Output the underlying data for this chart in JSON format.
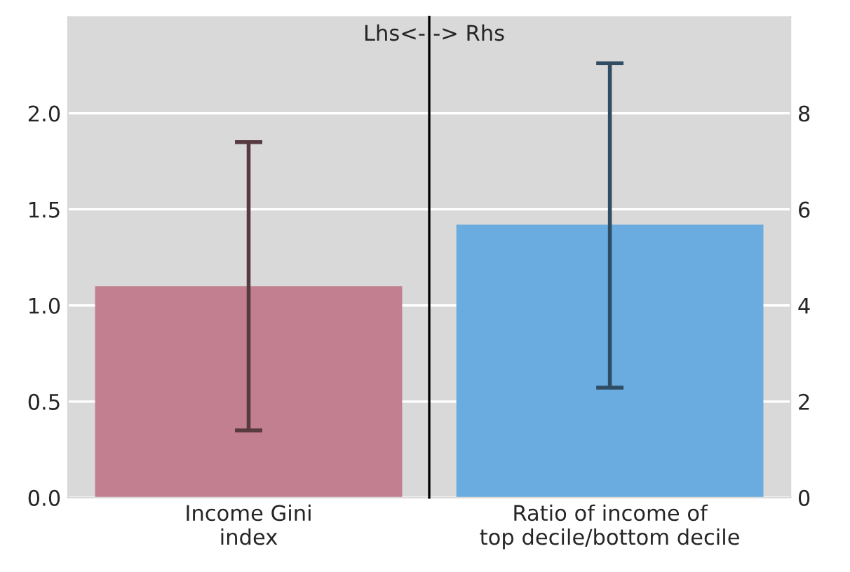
{
  "chart_data": [
    {
      "type": "bar",
      "categories": [
        "Income Gini\nindex"
      ],
      "series": [
        {
          "color": "#c27f8f",
          "values": [
            1.1
          ],
          "errors": [
            [
              0.35,
              1.85
            ]
          ]
        }
      ],
      "ylim": [
        0,
        2.5
      ],
      "yticks": [
        {
          "value": 0,
          "label": "0.0"
        },
        0.5,
        {
          "value": 1,
          "label": "1.0"
        },
        1.5,
        {
          "value": 2,
          "label": "2.0"
        }
      ],
      "annotations": [
        "Lhs<-"
      ],
      "grid": "y"
    },
    {
      "type": "bar",
      "categories": [
        "Ratio of income of\ntop decile/bottom decile"
      ],
      "series": [
        {
          "color": "#6aacdf",
          "values": [
            5.68
          ],
          "errors": [
            [
              2.29,
              9.04
            ]
          ],
          "axis": "y2"
        }
      ],
      "y2lim": [
        0,
        10
      ],
      "y2ticks": [
        0,
        2,
        4,
        6,
        8
      ],
      "annotations": [
        "-> Rhs"
      ],
      "grid": "y"
    }
  ]
}
